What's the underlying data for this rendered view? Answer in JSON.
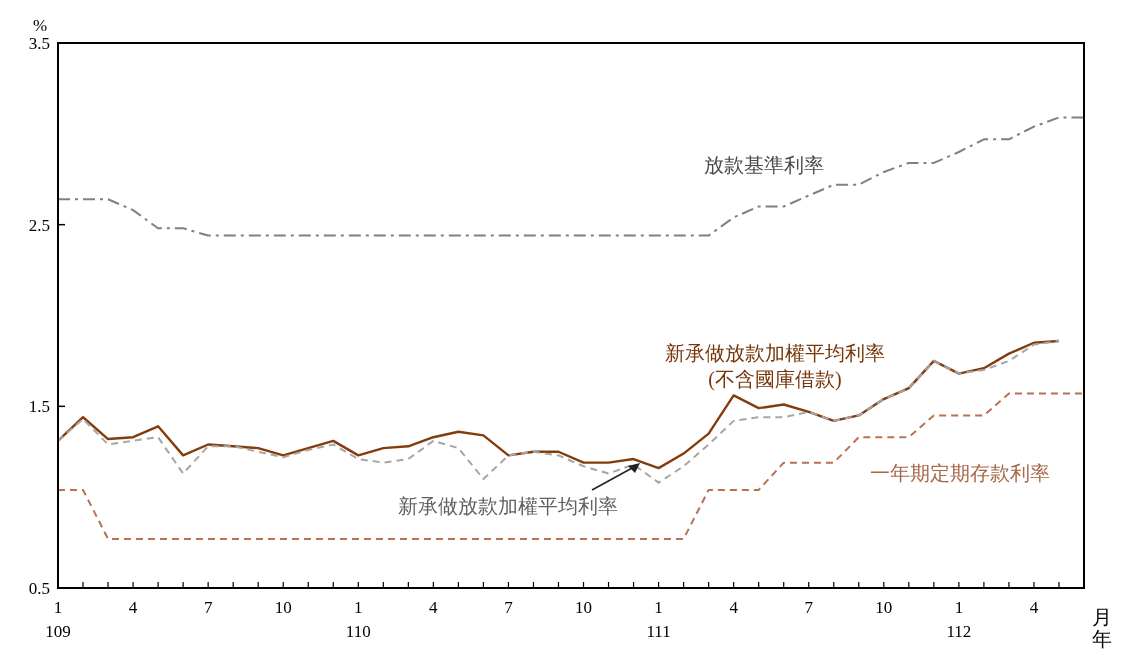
{
  "chart_data": {
    "type": "line",
    "ylabel": "%",
    "xlabel": "月年",
    "categories": [
      "1\n109",
      null,
      null,
      "4",
      null,
      null,
      "7",
      null,
      null,
      "10",
      null,
      null,
      "1\n110",
      null,
      null,
      "4",
      null,
      null,
      "7",
      null,
      null,
      "10",
      null,
      null,
      "1\n111",
      null,
      null,
      "4",
      null,
      null,
      "7",
      null,
      null,
      "10",
      null,
      null,
      "1\n112",
      null,
      null,
      "4",
      null,
      null
    ],
    "ylim": [
      0.5,
      3.5
    ],
    "yticks": [
      0.5,
      1.5,
      2.5,
      3.5
    ],
    "marker": "none",
    "series": [
      {
        "name": "放款基準利率",
        "color": "#808080",
        "line_style": "dashdot",
        "values": [
          2.64,
          2.64,
          2.64,
          2.58,
          2.48,
          2.48,
          2.44,
          2.44,
          2.44,
          2.44,
          2.44,
          2.44,
          2.44,
          2.44,
          2.44,
          2.44,
          2.44,
          2.44,
          2.44,
          2.44,
          2.44,
          2.44,
          2.44,
          2.44,
          2.44,
          2.44,
          2.44,
          2.54,
          2.6,
          2.6,
          2.66,
          2.72,
          2.72,
          2.79,
          2.84,
          2.84,
          2.9,
          2.97,
          2.97,
          3.04,
          3.09,
          3.09
        ]
      },
      {
        "name": "新承做放款加權平均利率\n(不含國庫借款)",
        "color": "#843c0c",
        "line_style": "solid",
        "values": [
          1.31,
          1.44,
          1.32,
          1.33,
          1.39,
          1.23,
          1.29,
          1.28,
          1.27,
          1.23,
          1.27,
          1.31,
          1.23,
          1.27,
          1.28,
          1.33,
          1.36,
          1.34,
          1.23,
          1.25,
          1.25,
          1.19,
          1.19,
          1.21,
          1.16,
          1.24,
          1.35,
          1.56,
          1.49,
          1.51,
          1.47,
          1.42,
          1.45,
          1.54,
          1.6,
          1.75,
          1.68,
          1.71,
          1.79,
          1.85,
          1.86,
          null
        ]
      },
      {
        "name": "新承做放款加權平均利率",
        "color": "#a6a6a6",
        "line_style": "dashed",
        "values": [
          1.31,
          1.43,
          1.29,
          1.31,
          1.33,
          1.13,
          1.28,
          1.28,
          1.25,
          1.22,
          1.26,
          1.29,
          1.21,
          1.19,
          1.21,
          1.31,
          1.27,
          1.1,
          1.23,
          1.25,
          1.23,
          1.17,
          1.13,
          1.18,
          1.08,
          1.17,
          1.29,
          1.42,
          1.44,
          1.44,
          1.47,
          1.42,
          1.45,
          1.54,
          1.6,
          1.75,
          1.68,
          1.7,
          1.75,
          1.84,
          1.86,
          null
        ]
      },
      {
        "name": "一年期定期存款利率",
        "color": "#b9714f",
        "line_style": "dashed",
        "values": [
          1.04,
          1.04,
          0.77,
          0.77,
          0.77,
          0.77,
          0.77,
          0.77,
          0.77,
          0.77,
          0.77,
          0.77,
          0.77,
          0.77,
          0.77,
          0.77,
          0.77,
          0.77,
          0.77,
          0.77,
          0.77,
          0.77,
          0.77,
          0.77,
          0.77,
          0.77,
          1.04,
          1.04,
          1.04,
          1.19,
          1.19,
          1.19,
          1.33,
          1.33,
          1.33,
          1.45,
          1.45,
          1.45,
          1.57,
          1.57,
          1.57,
          1.57
        ]
      }
    ]
  }
}
